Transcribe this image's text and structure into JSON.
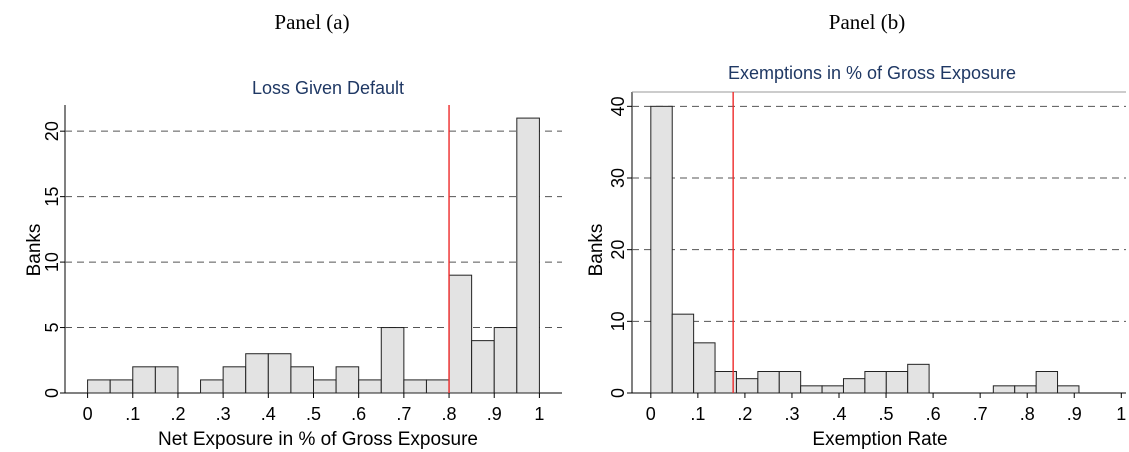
{
  "panels": {
    "left_label": "Panel (a)",
    "right_label": "Panel (b)"
  },
  "chart_data": [
    {
      "type": "bar",
      "title": "Loss Given Default",
      "xlabel": "Net Exposure in % of Gross Exposure",
      "ylabel": "Banks",
      "xlim": [
        -0.05,
        1.05
      ],
      "ylim": [
        0,
        22
      ],
      "x_ticks": [
        "0",
        ".1",
        ".2",
        ".3",
        ".4",
        ".5",
        ".6",
        ".7",
        ".8",
        ".9",
        "1"
      ],
      "y_ticks": [
        "0",
        "5",
        "10",
        "15",
        "20"
      ],
      "y_tick_values": [
        0,
        5,
        10,
        15,
        20
      ],
      "dashed_grid_values": [
        5,
        10,
        15,
        20
      ],
      "bin_width": 0.05,
      "bin_starts": [
        0,
        0.05,
        0.1,
        0.15,
        0.2,
        0.25,
        0.3,
        0.35,
        0.4,
        0.45,
        0.5,
        0.55,
        0.6,
        0.65,
        0.7,
        0.75,
        0.8,
        0.85,
        0.9,
        0.95
      ],
      "values": [
        1,
        1,
        2,
        2,
        0,
        1,
        2,
        3,
        3,
        2,
        1,
        2,
        1,
        5,
        1,
        1,
        9,
        4,
        5,
        21
      ],
      "reference_line_x": 0.8,
      "grid": true,
      "colors": {
        "bar_fill": "#e3e3e3",
        "bar_stroke": "#222222",
        "reference_line": "#ee2a2a",
        "grid": "#555555",
        "title": "#1f3864"
      }
    },
    {
      "type": "bar",
      "title": "Exemptions in % of Gross Exposure",
      "xlabel": "Exemption Rate",
      "ylabel": "Banks",
      "xlim": [
        -0.04,
        1.01
      ],
      "ylim": [
        0,
        42
      ],
      "x_ticks": [
        "0",
        ".1",
        ".2",
        ".3",
        ".4",
        ".5",
        ".6",
        ".7",
        ".8",
        ".9",
        "1"
      ],
      "y_ticks": [
        "0",
        "10",
        "20",
        "30",
        "40"
      ],
      "y_tick_values": [
        0,
        10,
        20,
        30,
        40
      ],
      "dashed_grid_values": [
        10,
        20,
        30,
        40
      ],
      "bin_width": 0.0455,
      "bin_starts": [
        0,
        0.0455,
        0.091,
        0.1365,
        0.182,
        0.2275,
        0.273,
        0.3185,
        0.364,
        0.4095,
        0.455,
        0.5005,
        0.546,
        0.5915,
        0.637,
        0.6825,
        0.728,
        0.7735,
        0.819,
        0.8645,
        0.91,
        0.9555
      ],
      "values": [
        40,
        11,
        7,
        3,
        2,
        3,
        3,
        1,
        1,
        2,
        3,
        3,
        4,
        0,
        0,
        0,
        1,
        1,
        3,
        1,
        0,
        0
      ],
      "reference_line_x": 0.175,
      "grid": true,
      "colors": {
        "bar_fill": "#e3e3e3",
        "bar_stroke": "#222222",
        "reference_line": "#ee2a2a",
        "grid": "#555555",
        "title": "#1f3864"
      }
    }
  ]
}
